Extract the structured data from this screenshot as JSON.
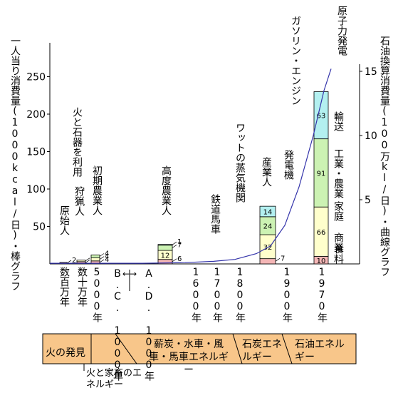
{
  "chart_data": {
    "type": "bar",
    "left_axis": {
      "title": "一人当り消費量(1000kcal/日)・棒グラフ",
      "ticks": [
        50,
        100,
        150,
        200,
        250
      ],
      "range": [
        0,
        300
      ]
    },
    "right_axis": {
      "title": "石油換算消費量(100万kl/日)・曲線グラフ",
      "ticks": [
        5,
        10,
        15
      ],
      "range": [
        0,
        15
      ]
    },
    "bar_legend": [
      "食料",
      "家庭 商業",
      "工業・農業",
      "輸送"
    ],
    "bars": [
      {
        "era": "原始人",
        "x_label": "数百万年",
        "stack": [
          2
        ],
        "colors": [
          "#f4b6b6"
        ]
      },
      {
        "era": "狩猟人",
        "x_label": "数十万年",
        "stack": [
          3,
          2
        ],
        "colors": [
          "#f4b6b6",
          "#ffffcc"
        ]
      },
      {
        "era": "初期農業人",
        "x_label": "5000年",
        "stack": [
          4,
          4,
          4
        ],
        "colors": [
          "#f4b6b6",
          "#ffffcc",
          "#ccf2b3"
        ]
      },
      {
        "era": "高度農業人",
        "x_label": "A.D. 1000年",
        "stack": [
          6,
          12,
          7,
          1
        ],
        "colors": [
          "#f4b6b6",
          "#ffffcc",
          "#ccf2b3",
          "#b3f0f0"
        ]
      },
      {
        "era": "産業人",
        "x_label": "1900年",
        "stack": [
          7,
          32,
          24,
          14
        ],
        "colors": [
          "#f4b6b6",
          "#ffffcc",
          "#ccf2b3",
          "#b3f0f0"
        ]
      },
      {
        "era": "",
        "x_label": "1970年",
        "stack": [
          10,
          66,
          91,
          63
        ],
        "colors": [
          "#f4b6b6",
          "#ffffcc",
          "#ccf2b3",
          "#b3f0f0"
        ]
      }
    ],
    "x_labels_other": [
      "B.C. 1000年",
      "1600年",
      "1700年",
      "1800年"
    ],
    "annotations": [
      "火と石器を利用",
      "鉄道馬車",
      "ワットの蒸気機関",
      "発電機",
      "ガソリン・エンジン",
      "原子力発電"
    ],
    "curve_color": "#3333aa"
  },
  "timeline": {
    "segments": [
      "火の発見",
      "薪炭・水車・風車・馬車エネルギー",
      "石炭エネルギー",
      "石油エネルギー"
    ],
    "below_note": "火と家畜のエネルギー",
    "fill_color": "#f8c68a"
  }
}
